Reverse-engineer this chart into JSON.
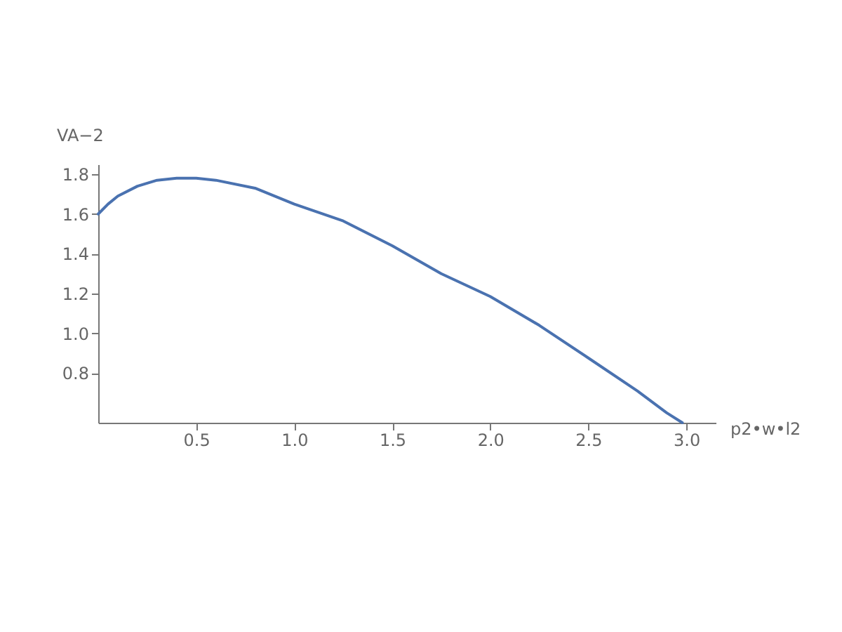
{
  "chart_data": {
    "type": "line",
    "xlabel": "p2•w•l2",
    "ylabel": "VA−2",
    "x": [
      0,
      0.05,
      0.1,
      0.2,
      0.3,
      0.4,
      0.5,
      0.6,
      0.8,
      1.0,
      1.25,
      1.5,
      1.75,
      2.0,
      2.25,
      2.5,
      2.75,
      2.9,
      2.98
    ],
    "series": [
      {
        "color": "#4a72b0",
        "values": [
          1.6,
          1.65,
          1.69,
          1.74,
          1.77,
          1.78,
          1.78,
          1.77,
          1.73,
          1.65,
          1.565,
          1.44,
          1.3,
          1.185,
          1.04,
          0.876,
          0.71,
          0.6,
          0.55
        ]
      }
    ],
    "xlim": [
      0,
      3.15
    ],
    "ylim": [
      0.55,
      1.85
    ],
    "xticks": [
      0.5,
      {
        "value": 1,
        "label": "1.0"
      },
      1.5,
      {
        "value": 2,
        "label": "2.0"
      },
      2.5,
      {
        "value": 3,
        "label": "3.0"
      }
    ],
    "yticks": [
      0.8,
      {
        "value": 1,
        "label": "1.0"
      },
      1.2,
      1.4,
      1.6,
      1.8
    ],
    "grid": false,
    "legend": false,
    "marker": "none",
    "line_style": "solid"
  }
}
